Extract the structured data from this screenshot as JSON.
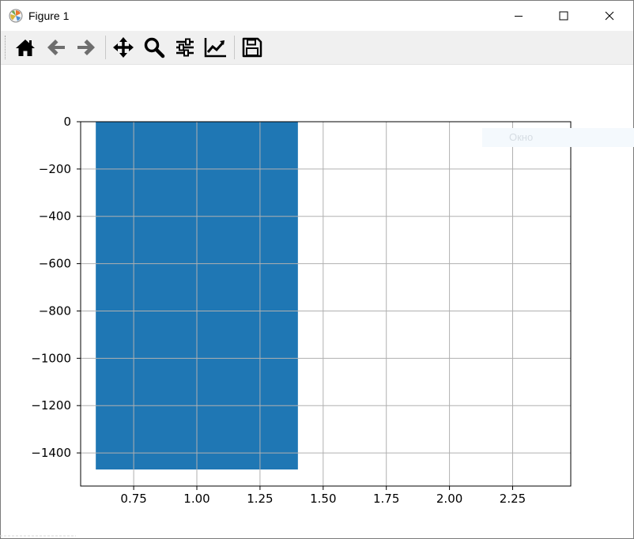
{
  "window": {
    "title": "Figure 1",
    "app_icon": "matplotlib-icon",
    "controls": [
      "minimize-icon",
      "maximize-icon",
      "close-icon"
    ]
  },
  "toolbar": {
    "buttons": [
      {
        "name": "home-button",
        "icon": "home-icon"
      },
      {
        "name": "back-button",
        "icon": "arrow-left-icon"
      },
      {
        "name": "forward-button",
        "icon": "arrow-right-icon"
      },
      {
        "name": "pan-button",
        "icon": "move-icon"
      },
      {
        "name": "zoom-button",
        "icon": "magnifier-icon"
      },
      {
        "name": "subplots-button",
        "icon": "sliders-icon"
      },
      {
        "name": "edit-axes-button",
        "icon": "line-chart-icon"
      },
      {
        "name": "save-button",
        "icon": "floppy-disk-icon"
      }
    ]
  },
  "tooltip": {
    "text": "Окно"
  },
  "chart_data": {
    "type": "bar",
    "x": [
      1.0
    ],
    "bar_width": 0.8,
    "values": [
      -1470
    ],
    "color": "#1f77b4",
    "xlim": [
      0.54,
      2.48
    ],
    "ylim": [
      -1540,
      0
    ],
    "xticks": [
      0.75,
      1.0,
      1.25,
      1.5,
      1.75,
      2.0,
      2.25
    ],
    "xtick_labels": [
      "0.75",
      "1.00",
      "1.25",
      "1.50",
      "1.75",
      "2.00",
      "2.25"
    ],
    "yticks": [
      0,
      -200,
      -400,
      -600,
      -800,
      -1000,
      -1200,
      -1400
    ],
    "ytick_labels": [
      "0",
      "−200",
      "−400",
      "−600",
      "−800",
      "−1000",
      "−1200",
      "−1400"
    ],
    "grid": true,
    "title": "",
    "xlabel": "",
    "ylabel": ""
  }
}
